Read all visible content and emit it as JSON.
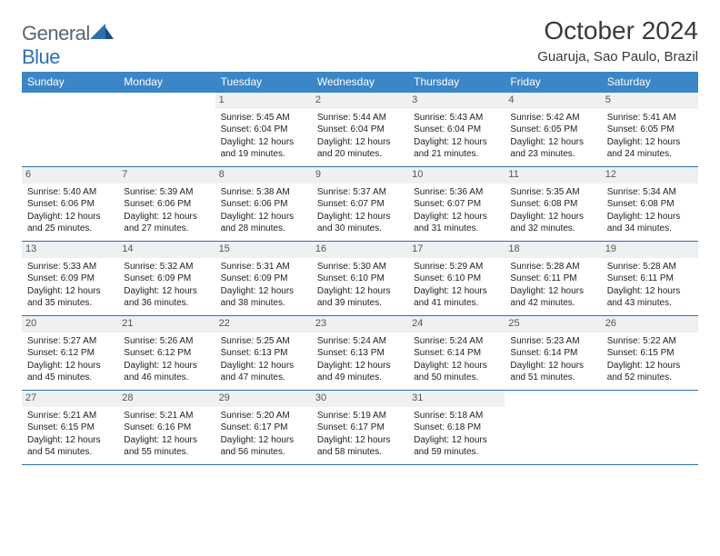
{
  "logo": {
    "general": "General",
    "blue": "Blue"
  },
  "title": "October 2024",
  "location": "Guaruja, Sao Paulo, Brazil",
  "colors": {
    "header_bar": "#3b86c7",
    "row_divider": "#2f6fb0",
    "daynum_bg": "#eef0f2",
    "logo_gray": "#5a6670",
    "logo_blue": "#2f6fb0"
  },
  "daysOfWeek": [
    "Sunday",
    "Monday",
    "Tuesday",
    "Wednesday",
    "Thursday",
    "Friday",
    "Saturday"
  ],
  "weeks": [
    [
      {
        "blank": true
      },
      {
        "blank": true
      },
      {
        "n": 1,
        "sunrise": "5:45 AM",
        "sunset": "6:04 PM",
        "daylight": "12 hours and 19 minutes."
      },
      {
        "n": 2,
        "sunrise": "5:44 AM",
        "sunset": "6:04 PM",
        "daylight": "12 hours and 20 minutes."
      },
      {
        "n": 3,
        "sunrise": "5:43 AM",
        "sunset": "6:04 PM",
        "daylight": "12 hours and 21 minutes."
      },
      {
        "n": 4,
        "sunrise": "5:42 AM",
        "sunset": "6:05 PM",
        "daylight": "12 hours and 23 minutes."
      },
      {
        "n": 5,
        "sunrise": "5:41 AM",
        "sunset": "6:05 PM",
        "daylight": "12 hours and 24 minutes."
      }
    ],
    [
      {
        "n": 6,
        "sunrise": "5:40 AM",
        "sunset": "6:06 PM",
        "daylight": "12 hours and 25 minutes."
      },
      {
        "n": 7,
        "sunrise": "5:39 AM",
        "sunset": "6:06 PM",
        "daylight": "12 hours and 27 minutes."
      },
      {
        "n": 8,
        "sunrise": "5:38 AM",
        "sunset": "6:06 PM",
        "daylight": "12 hours and 28 minutes."
      },
      {
        "n": 9,
        "sunrise": "5:37 AM",
        "sunset": "6:07 PM",
        "daylight": "12 hours and 30 minutes."
      },
      {
        "n": 10,
        "sunrise": "5:36 AM",
        "sunset": "6:07 PM",
        "daylight": "12 hours and 31 minutes."
      },
      {
        "n": 11,
        "sunrise": "5:35 AM",
        "sunset": "6:08 PM",
        "daylight": "12 hours and 32 minutes."
      },
      {
        "n": 12,
        "sunrise": "5:34 AM",
        "sunset": "6:08 PM",
        "daylight": "12 hours and 34 minutes."
      }
    ],
    [
      {
        "n": 13,
        "sunrise": "5:33 AM",
        "sunset": "6:09 PM",
        "daylight": "12 hours and 35 minutes."
      },
      {
        "n": 14,
        "sunrise": "5:32 AM",
        "sunset": "6:09 PM",
        "daylight": "12 hours and 36 minutes."
      },
      {
        "n": 15,
        "sunrise": "5:31 AM",
        "sunset": "6:09 PM",
        "daylight": "12 hours and 38 minutes."
      },
      {
        "n": 16,
        "sunrise": "5:30 AM",
        "sunset": "6:10 PM",
        "daylight": "12 hours and 39 minutes."
      },
      {
        "n": 17,
        "sunrise": "5:29 AM",
        "sunset": "6:10 PM",
        "daylight": "12 hours and 41 minutes."
      },
      {
        "n": 18,
        "sunrise": "5:28 AM",
        "sunset": "6:11 PM",
        "daylight": "12 hours and 42 minutes."
      },
      {
        "n": 19,
        "sunrise": "5:28 AM",
        "sunset": "6:11 PM",
        "daylight": "12 hours and 43 minutes."
      }
    ],
    [
      {
        "n": 20,
        "sunrise": "5:27 AM",
        "sunset": "6:12 PM",
        "daylight": "12 hours and 45 minutes."
      },
      {
        "n": 21,
        "sunrise": "5:26 AM",
        "sunset": "6:12 PM",
        "daylight": "12 hours and 46 minutes."
      },
      {
        "n": 22,
        "sunrise": "5:25 AM",
        "sunset": "6:13 PM",
        "daylight": "12 hours and 47 minutes."
      },
      {
        "n": 23,
        "sunrise": "5:24 AM",
        "sunset": "6:13 PM",
        "daylight": "12 hours and 49 minutes."
      },
      {
        "n": 24,
        "sunrise": "5:24 AM",
        "sunset": "6:14 PM",
        "daylight": "12 hours and 50 minutes."
      },
      {
        "n": 25,
        "sunrise": "5:23 AM",
        "sunset": "6:14 PM",
        "daylight": "12 hours and 51 minutes."
      },
      {
        "n": 26,
        "sunrise": "5:22 AM",
        "sunset": "6:15 PM",
        "daylight": "12 hours and 52 minutes."
      }
    ],
    [
      {
        "n": 27,
        "sunrise": "5:21 AM",
        "sunset": "6:15 PM",
        "daylight": "12 hours and 54 minutes."
      },
      {
        "n": 28,
        "sunrise": "5:21 AM",
        "sunset": "6:16 PM",
        "daylight": "12 hours and 55 minutes."
      },
      {
        "n": 29,
        "sunrise": "5:20 AM",
        "sunset": "6:17 PM",
        "daylight": "12 hours and 56 minutes."
      },
      {
        "n": 30,
        "sunrise": "5:19 AM",
        "sunset": "6:17 PM",
        "daylight": "12 hours and 58 minutes."
      },
      {
        "n": 31,
        "sunrise": "5:18 AM",
        "sunset": "6:18 PM",
        "daylight": "12 hours and 59 minutes."
      },
      {
        "blank": true
      },
      {
        "blank": true
      }
    ]
  ],
  "labels": {
    "sunrise": "Sunrise:",
    "sunset": "Sunset:",
    "daylight": "Daylight:"
  }
}
